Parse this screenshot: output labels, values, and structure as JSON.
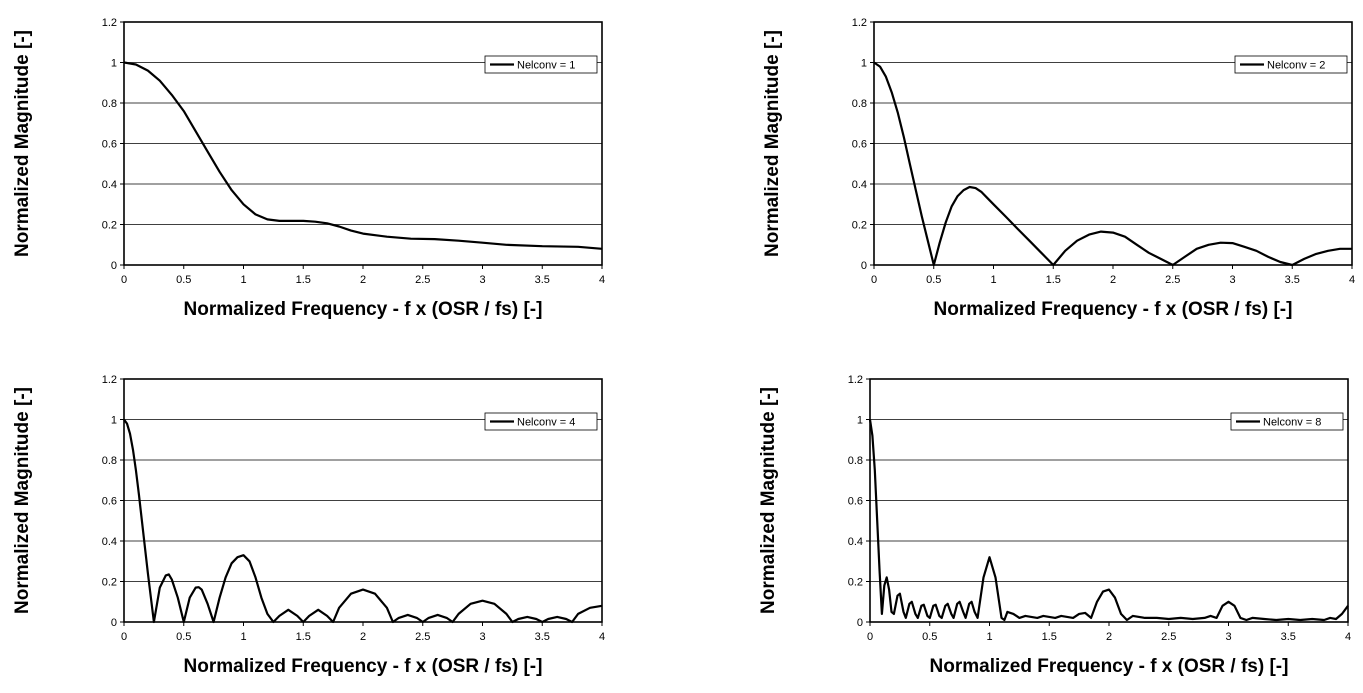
{
  "chart_data": [
    {
      "type": "line",
      "xlabel": "Normalized Frequency - f x (OSR / fs) [-]",
      "ylabel": "Normalized Magnitude [-]",
      "xlim": [
        0,
        4
      ],
      "ylim": [
        0,
        1.2
      ],
      "xticks": [
        "0",
        "0.5",
        "1",
        "1.5",
        "2",
        "2.5",
        "3",
        "3.5",
        "4"
      ],
      "yticks": [
        "0",
        "0.2",
        "0.4",
        "0.6",
        "0.8",
        "1",
        "1.2"
      ],
      "grid": "horizontal",
      "legend_position": "top-right",
      "series": [
        {
          "name": "Nelconv = 1",
          "x": [
            0,
            0.1,
            0.2,
            0.3,
            0.4,
            0.5,
            0.6,
            0.7,
            0.8,
            0.9,
            1.0,
            1.1,
            1.2,
            1.3,
            1.4,
            1.5,
            1.6,
            1.7,
            1.8,
            1.9,
            2.0,
            2.2,
            2.4,
            2.6,
            2.8,
            3.0,
            3.2,
            3.5,
            3.8,
            4.0
          ],
          "y": [
            1.0,
            0.99,
            0.96,
            0.91,
            0.84,
            0.76,
            0.66,
            0.56,
            0.46,
            0.37,
            0.3,
            0.25,
            0.225,
            0.218,
            0.218,
            0.218,
            0.214,
            0.206,
            0.19,
            0.17,
            0.155,
            0.14,
            0.13,
            0.128,
            0.12,
            0.11,
            0.1,
            0.093,
            0.09,
            0.08
          ]
        }
      ]
    },
    {
      "type": "line",
      "xlabel": "Normalized Frequency - f x (OSR / fs) [-]",
      "ylabel": "Normalized Magnitude [-]",
      "xlim": [
        0,
        4
      ],
      "ylim": [
        0,
        1.2
      ],
      "xticks": [
        "0",
        "0.5",
        "1",
        "1.5",
        "2",
        "2.5",
        "3",
        "3.5",
        "4"
      ],
      "yticks": [
        "0",
        "0.2",
        "0.4",
        "0.6",
        "0.8",
        "1",
        "1.2"
      ],
      "grid": "horizontal",
      "legend_position": "top-right",
      "series": [
        {
          "name": "Nelconv = 2",
          "x": [
            0,
            0.05,
            0.1,
            0.15,
            0.2,
            0.25,
            0.3,
            0.35,
            0.4,
            0.45,
            0.5,
            0.55,
            0.6,
            0.65,
            0.7,
            0.75,
            0.8,
            0.85,
            0.9,
            0.95,
            1.0,
            1.1,
            1.2,
            1.3,
            1.4,
            1.5,
            1.6,
            1.7,
            1.8,
            1.9,
            2.0,
            2.1,
            2.2,
            2.3,
            2.4,
            2.5,
            2.6,
            2.7,
            2.8,
            2.9,
            3.0,
            3.1,
            3.2,
            3.3,
            3.4,
            3.5,
            3.6,
            3.7,
            3.8,
            3.9,
            4.0
          ],
          "y": [
            1.0,
            0.98,
            0.93,
            0.85,
            0.75,
            0.63,
            0.5,
            0.37,
            0.24,
            0.12,
            0.0,
            0.11,
            0.21,
            0.29,
            0.34,
            0.37,
            0.385,
            0.38,
            0.36,
            0.33,
            0.3,
            0.24,
            0.18,
            0.12,
            0.06,
            0.0,
            0.07,
            0.12,
            0.15,
            0.165,
            0.16,
            0.14,
            0.1,
            0.06,
            0.03,
            0.0,
            0.04,
            0.08,
            0.1,
            0.11,
            0.108,
            0.09,
            0.07,
            0.04,
            0.015,
            0.0,
            0.03,
            0.055,
            0.07,
            0.08,
            0.08
          ]
        }
      ]
    },
    {
      "type": "line",
      "xlabel": "Normalized Frequency - f x (OSR / fs) [-]",
      "ylabel": "Normalized Magnitude [-]",
      "xlim": [
        0,
        4
      ],
      "ylim": [
        0,
        1.2
      ],
      "xticks": [
        "0",
        "0.5",
        "1",
        "1.5",
        "2",
        "2.5",
        "3",
        "3.5",
        "4"
      ],
      "yticks": [
        "0",
        "0.2",
        "0.4",
        "0.6",
        "0.8",
        "1",
        "1.2"
      ],
      "grid": "horizontal",
      "legend_position": "top-right",
      "series": [
        {
          "name": "Nelconv = 4",
          "x": [
            0,
            0.025,
            0.05,
            0.075,
            0.1,
            0.125,
            0.15,
            0.175,
            0.2,
            0.225,
            0.25,
            0.3,
            0.35,
            0.375,
            0.4,
            0.45,
            0.5,
            0.55,
            0.6,
            0.625,
            0.65,
            0.7,
            0.75,
            0.8,
            0.85,
            0.9,
            0.95,
            1.0,
            1.05,
            1.1,
            1.15,
            1.2,
            1.25,
            1.3,
            1.375,
            1.45,
            1.5,
            1.55,
            1.625,
            1.7,
            1.75,
            1.8,
            1.9,
            2.0,
            2.1,
            2.2,
            2.25,
            2.3,
            2.375,
            2.45,
            2.5,
            2.55,
            2.625,
            2.7,
            2.75,
            2.8,
            2.9,
            3.0,
            3.1,
            3.2,
            3.25,
            3.3,
            3.375,
            3.45,
            3.5,
            3.55,
            3.625,
            3.7,
            3.75,
            3.8,
            3.9,
            4.0
          ],
          "y": [
            1.0,
            0.98,
            0.93,
            0.85,
            0.75,
            0.63,
            0.5,
            0.37,
            0.24,
            0.12,
            0.0,
            0.17,
            0.23,
            0.235,
            0.21,
            0.12,
            0.0,
            0.12,
            0.17,
            0.172,
            0.16,
            0.09,
            0.0,
            0.12,
            0.22,
            0.29,
            0.32,
            0.33,
            0.3,
            0.22,
            0.12,
            0.04,
            0.0,
            0.03,
            0.06,
            0.03,
            0.0,
            0.03,
            0.06,
            0.03,
            0.0,
            0.07,
            0.14,
            0.16,
            0.14,
            0.07,
            0.0,
            0.02,
            0.035,
            0.02,
            0.0,
            0.02,
            0.035,
            0.02,
            0.0,
            0.04,
            0.09,
            0.105,
            0.09,
            0.04,
            0.0,
            0.015,
            0.025,
            0.015,
            0.0,
            0.015,
            0.025,
            0.015,
            0.0,
            0.04,
            0.07,
            0.08
          ]
        }
      ]
    },
    {
      "type": "line",
      "xlabel": "Normalized Frequency - f x (OSR / fs) [-]",
      "ylabel": "Normalized Magnitude [-]",
      "xlim": [
        0,
        4
      ],
      "ylim": [
        0,
        1.2
      ],
      "xticks": [
        "0",
        "0.5",
        "1",
        "1.5",
        "2",
        "2.5",
        "3",
        "3.5",
        "4"
      ],
      "yticks": [
        "0",
        "0.2",
        "0.4",
        "0.6",
        "0.8",
        "1",
        "1.2"
      ],
      "grid": "horizontal",
      "legend_position": "top-right",
      "series": [
        {
          "name": "Nelconv = 8",
          "x": [
            0,
            0.02,
            0.04,
            0.06,
            0.08,
            0.1,
            0.12,
            0.14,
            0.16,
            0.18,
            0.2,
            0.23,
            0.25,
            0.28,
            0.3,
            0.33,
            0.35,
            0.38,
            0.4,
            0.43,
            0.45,
            0.48,
            0.5,
            0.53,
            0.55,
            0.58,
            0.6,
            0.63,
            0.65,
            0.68,
            0.7,
            0.73,
            0.75,
            0.78,
            0.8,
            0.83,
            0.85,
            0.875,
            0.9,
            0.95,
            1.0,
            1.05,
            1.1,
            1.125,
            1.15,
            1.2,
            1.25,
            1.3,
            1.35,
            1.4,
            1.45,
            1.5,
            1.55,
            1.6,
            1.65,
            1.7,
            1.75,
            1.8,
            1.85,
            1.9,
            1.95,
            2.0,
            2.05,
            2.1,
            2.15,
            2.2,
            2.3,
            2.4,
            2.5,
            2.6,
            2.7,
            2.8,
            2.85,
            2.9,
            2.95,
            3.0,
            3.05,
            3.1,
            3.15,
            3.2,
            3.3,
            3.4,
            3.5,
            3.6,
            3.7,
            3.8,
            3.85,
            3.9,
            3.95,
            4.0
          ],
          "y": [
            1.0,
            0.92,
            0.75,
            0.5,
            0.25,
            0.04,
            0.18,
            0.22,
            0.16,
            0.05,
            0.04,
            0.13,
            0.14,
            0.05,
            0.02,
            0.09,
            0.1,
            0.04,
            0.02,
            0.08,
            0.085,
            0.03,
            0.02,
            0.08,
            0.085,
            0.03,
            0.02,
            0.08,
            0.09,
            0.04,
            0.02,
            0.09,
            0.1,
            0.05,
            0.02,
            0.09,
            0.1,
            0.05,
            0.02,
            0.22,
            0.32,
            0.22,
            0.02,
            0.01,
            0.05,
            0.04,
            0.02,
            0.03,
            0.025,
            0.02,
            0.03,
            0.025,
            0.02,
            0.03,
            0.025,
            0.02,
            0.04,
            0.045,
            0.02,
            0.1,
            0.15,
            0.16,
            0.12,
            0.04,
            0.01,
            0.03,
            0.02,
            0.02,
            0.015,
            0.02,
            0.015,
            0.02,
            0.03,
            0.02,
            0.08,
            0.1,
            0.08,
            0.02,
            0.01,
            0.02,
            0.015,
            0.01,
            0.015,
            0.01,
            0.015,
            0.01,
            0.02,
            0.015,
            0.04,
            0.08
          ]
        }
      ]
    }
  ]
}
